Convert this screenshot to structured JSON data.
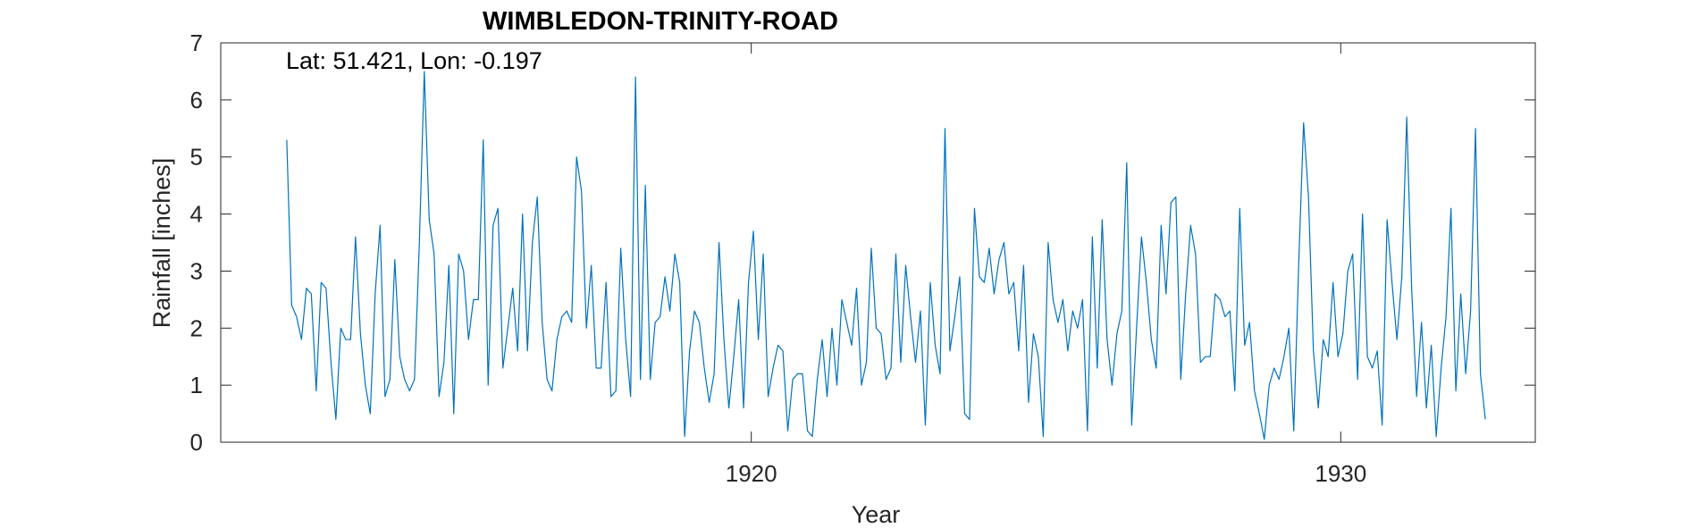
{
  "chart_data": {
    "type": "line",
    "title": "WIMBLEDON-TRINITY-ROAD",
    "annotation": "Lat: 51.421, Lon: -0.197",
    "xlabel": "Year",
    "ylabel": "Rainfall [inches]",
    "xlim": [
      1911.0,
      1933.3
    ],
    "ylim": [
      0,
      7
    ],
    "xticks": [
      1920,
      1930
    ],
    "yticks": [
      0,
      1,
      2,
      3,
      4,
      5,
      6,
      7
    ],
    "grid": false,
    "line_color": "#0072BD",
    "series": [
      {
        "start": 1912.12,
        "step": 0.08333,
        "values": [
          5.3,
          2.4,
          2.2,
          1.8,
          2.7,
          2.6,
          0.9,
          2.8,
          2.7,
          1.4,
          0.4,
          2.0,
          1.8,
          1.8,
          3.6,
          1.9,
          1.0,
          0.5,
          2.6,
          3.8,
          0.8,
          1.1,
          3.2,
          1.5,
          1.1,
          0.9,
          1.1,
          3.5,
          6.5,
          3.9,
          3.3,
          0.8,
          1.4,
          3.1,
          0.5,
          3.3,
          3.0,
          1.8,
          2.5,
          2.5,
          5.3,
          1.0,
          3.8,
          4.1,
          1.3,
          2.0,
          2.7,
          1.6,
          4.0,
          1.6,
          3.5,
          4.3,
          2.1,
          1.1,
          0.9,
          1.8,
          2.2,
          2.3,
          2.1,
          5.0,
          4.4,
          2.0,
          3.1,
          1.3,
          1.3,
          2.8,
          0.8,
          0.9,
          3.4,
          1.8,
          0.8,
          6.4,
          1.1,
          4.5,
          1.1,
          2.1,
          2.2,
          2.9,
          2.3,
          3.3,
          2.8,
          0.1,
          1.6,
          2.3,
          2.1,
          1.3,
          0.7,
          1.2,
          3.5,
          1.8,
          0.6,
          1.5,
          2.5,
          0.6,
          2.8,
          3.7,
          1.8,
          3.3,
          0.8,
          1.3,
          1.7,
          1.6,
          0.2,
          1.1,
          1.2,
          1.2,
          0.2,
          0.1,
          1.1,
          1.8,
          0.8,
          2.0,
          1.0,
          2.5,
          2.1,
          1.7,
          2.7,
          1.0,
          1.4,
          3.4,
          2.0,
          1.9,
          1.1,
          1.3,
          3.3,
          1.4,
          3.1,
          2.2,
          1.4,
          2.3,
          0.3,
          2.8,
          1.7,
          1.2,
          5.5,
          1.6,
          2.2,
          2.9,
          0.5,
          0.4,
          4.1,
          2.9,
          2.8,
          3.4,
          2.6,
          3.2,
          3.5,
          2.6,
          2.8,
          1.6,
          3.1,
          0.7,
          1.9,
          1.5,
          0.1,
          3.5,
          2.5,
          2.1,
          2.5,
          1.6,
          2.3,
          2.0,
          2.5,
          0.2,
          3.6,
          1.3,
          3.9,
          1.8,
          1.0,
          1.9,
          2.3,
          4.9,
          0.3,
          2.0,
          3.6,
          2.8,
          1.8,
          1.3,
          3.8,
          2.6,
          4.2,
          4.3,
          1.1,
          2.6,
          3.8,
          3.3,
          1.4,
          1.5,
          1.5,
          2.6,
          2.5,
          2.2,
          2.3,
          0.9,
          4.1,
          1.7,
          2.1,
          0.9,
          0.5,
          0.05,
          1.0,
          1.3,
          1.1,
          1.5,
          2.0,
          0.2,
          3.1,
          5.6,
          4.3,
          1.6,
          0.6,
          1.8,
          1.5,
          2.8,
          1.5,
          1.9,
          3.0,
          3.3,
          1.1,
          4.0,
          1.5,
          1.3,
          1.6,
          0.3,
          3.9,
          2.8,
          1.8,
          2.9,
          5.7,
          2.7,
          0.8,
          2.1,
          0.6,
          1.7,
          0.1,
          1.3,
          2.2,
          4.1,
          0.9,
          2.6,
          1.2,
          2.3,
          5.5,
          1.2,
          0.4
        ]
      }
    ]
  }
}
